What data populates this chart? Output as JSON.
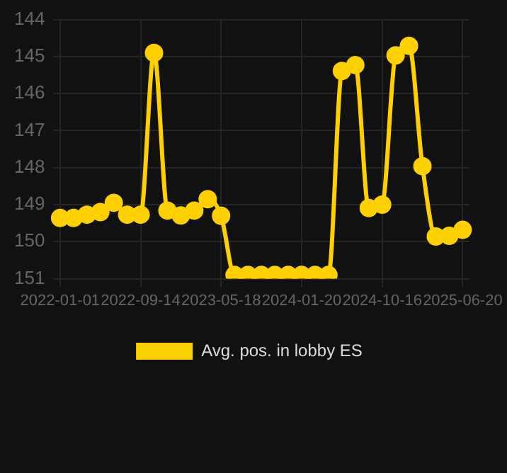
{
  "chart_data": {
    "type": "line",
    "categories": [
      "2022-01-01",
      null,
      null,
      null,
      null,
      null,
      "2022-09-14",
      null,
      null,
      null,
      null,
      null,
      "2023-05-18",
      null,
      null,
      null,
      null,
      null,
      "2024-01-20",
      null,
      null,
      null,
      null,
      null,
      "2024-10-16",
      null,
      null,
      null,
      null,
      null,
      "2025-06-20"
    ],
    "series": [
      {
        "name": "Avg. pos. in lobby ES",
        "color": "#ffd000",
        "values": [
          149.36,
          149.36,
          149.27,
          149.2,
          148.95,
          149.27,
          149.27,
          144.9,
          149.16,
          149.29,
          149.16,
          148.85,
          149.3,
          150.9,
          150.9,
          150.9,
          150.9,
          150.9,
          150.9,
          150.9,
          150.9,
          145.39,
          145.23,
          149.09,
          149.0,
          144.97,
          144.71,
          147.96,
          149.86,
          149.84,
          149.68
        ]
      }
    ],
    "ylim": [
      151,
      144
    ],
    "yticks": [
      144,
      145,
      146,
      147,
      148,
      149,
      150,
      151
    ],
    "grid": true,
    "legend": "bottom",
    "marker": "circle",
    "line_style": "solid"
  }
}
